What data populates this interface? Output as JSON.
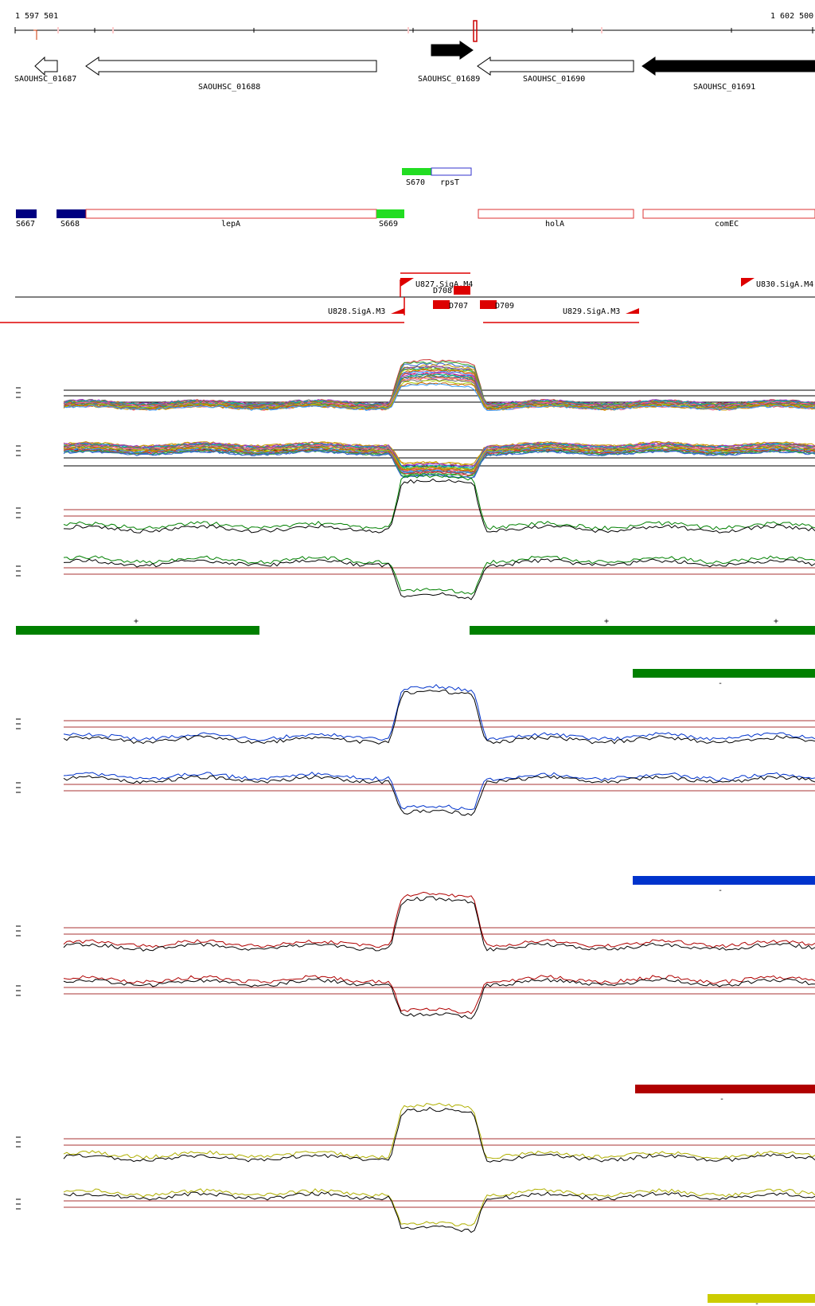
{
  "coords": {
    "start": "1 597 501",
    "end": "1 602 500"
  },
  "genes": [
    {
      "id": "SAOUHSC_01687"
    },
    {
      "id": "SAOUHSC_01688"
    },
    {
      "id": "SAOUHSC_01689"
    },
    {
      "id": "SAOUHSC_01690"
    },
    {
      "id": "SAOUHSC_01691"
    }
  ],
  "small_rna": [
    {
      "label": "S670"
    },
    {
      "label": "rpsT"
    }
  ],
  "segments": [
    {
      "label": "S667"
    },
    {
      "label": "S668"
    },
    {
      "label": "lepA"
    },
    {
      "label": "S669"
    },
    {
      "label": "holA"
    },
    {
      "label": "comEC"
    }
  ],
  "tss": [
    {
      "label": "U827.SigA.M4"
    },
    {
      "label": "U830.SigA.M4"
    },
    {
      "label": "D708"
    },
    {
      "label": "D707"
    },
    {
      "label": "D709"
    },
    {
      "label": "U828.SigA.M3"
    },
    {
      "label": "U829.SigA.M3"
    }
  ],
  "panels": [
    {
      "name": "multi",
      "accent": "#888888",
      "strands": [
        "+",
        "+",
        "+"
      ]
    },
    {
      "name": "green",
      "accent": "#008000",
      "strands": [
        "-"
      ]
    },
    {
      "name": "blue",
      "accent": "#0033cc",
      "strands": [
        "-"
      ]
    },
    {
      "name": "red",
      "accent": "#b00000",
      "strands": [
        "-"
      ]
    },
    {
      "name": "yellow",
      "accent": "#cccc00",
      "strands": [
        "-"
      ]
    }
  ]
}
